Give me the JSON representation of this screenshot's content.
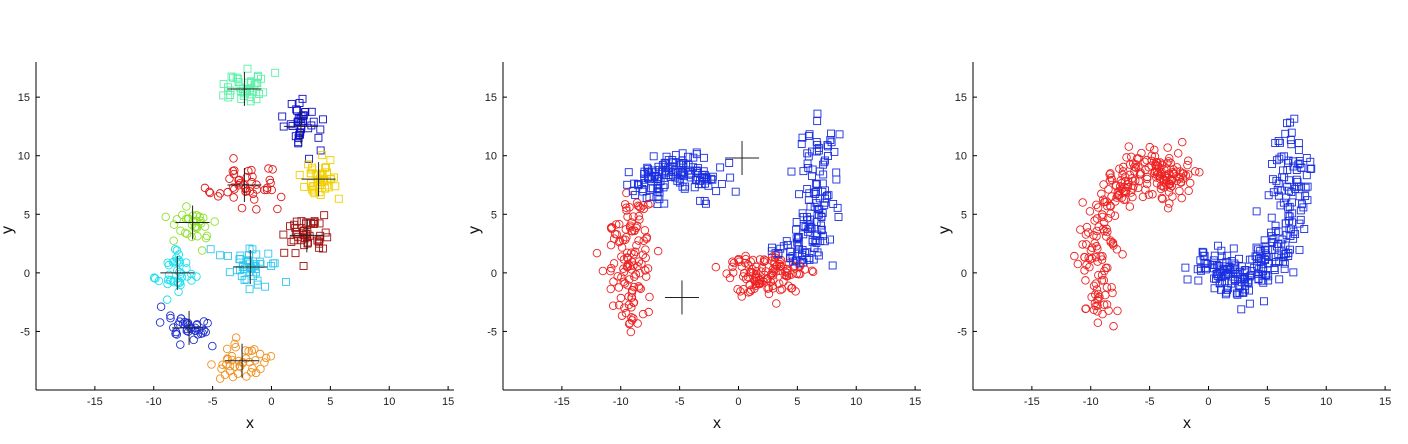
{
  "chart_data": [
    {
      "type": "scatter",
      "xlabel": "x",
      "ylabel": "y",
      "xlim": [
        -20,
        15.5
      ],
      "ylim": [
        -10,
        18
      ],
      "xticks": [
        "-15",
        "-10",
        "-5",
        "0",
        "5",
        "10",
        "15"
      ],
      "yticks": [
        "-5",
        "0",
        "5",
        "10",
        "15"
      ],
      "grid": false,
      "clusters": [
        {
          "color": "#5cf0a8",
          "marker": "square",
          "center": [
            -2.3,
            15.7
          ],
          "spread": [
            2.0,
            1.3
          ],
          "n": 40
        },
        {
          "color": "#1010c8",
          "marker": "square",
          "center": [
            2.5,
            12.5
          ],
          "spread": [
            1.4,
            2.0
          ],
          "n": 40
        },
        {
          "color": "#f0d000",
          "marker": "square",
          "center": [
            4.0,
            8.0
          ],
          "spread": [
            1.6,
            1.7
          ],
          "n": 42
        },
        {
          "color": "#e01818",
          "marker": "circle",
          "center": [
            -2.3,
            7.5
          ],
          "spread": [
            3.0,
            1.6
          ],
          "n": 45
        },
        {
          "color": "#a01010",
          "marker": "square",
          "center": [
            3.0,
            3.2
          ],
          "spread": [
            1.7,
            1.8
          ],
          "n": 45
        },
        {
          "color": "#90e030",
          "marker": "circle",
          "center": [
            -6.7,
            4.3
          ],
          "spread": [
            1.7,
            1.6
          ],
          "n": 35
        },
        {
          "color": "#30c8f0",
          "marker": "square",
          "center": [
            -1.8,
            0.5
          ],
          "spread": [
            2.2,
            1.7
          ],
          "n": 45
        },
        {
          "color": "#20e0f0",
          "marker": "circle",
          "center": [
            -8.0,
            0.0
          ],
          "spread": [
            1.7,
            2.0
          ],
          "n": 40
        },
        {
          "color": "#2030d0",
          "marker": "circle",
          "center": [
            -7.0,
            -4.7
          ],
          "spread": [
            1.9,
            1.7
          ],
          "n": 40
        },
        {
          "color": "#f09020",
          "marker": "circle",
          "center": [
            -2.5,
            -7.5
          ],
          "spread": [
            2.0,
            1.6
          ],
          "n": 40
        }
      ],
      "centroids": [
        [
          -2.3,
          15.7
        ],
        [
          2.5,
          12.5
        ],
        [
          4.0,
          8.0
        ],
        [
          -2.3,
          7.5
        ],
        [
          3.0,
          3.2
        ],
        [
          -6.7,
          4.3
        ],
        [
          -1.8,
          0.5
        ],
        [
          -8.0,
          0.0
        ],
        [
          -7.0,
          -4.7
        ],
        [
          -2.5,
          -7.5
        ]
      ]
    },
    {
      "type": "scatter",
      "xlabel": "x",
      "ylabel": "y",
      "xlim": [
        -20,
        15.5
      ],
      "ylim": [
        -10,
        18
      ],
      "xticks": [
        "-15",
        "-10",
        "-5",
        "0",
        "5",
        "10",
        "15"
      ],
      "yticks": [
        "-5",
        "0",
        "5",
        "10",
        "15"
      ],
      "grid": false,
      "series": [
        {
          "color": "#1a2fe0",
          "marker": "square",
          "region": "upper-spiral-and-inner-arc"
        },
        {
          "color": "#ee2222",
          "marker": "circle",
          "region": "lower-spiral-and-inner-arc"
        }
      ],
      "centroids": [
        [
          0.3,
          9.8
        ],
        [
          -4.8,
          -2.1
        ]
      ]
    },
    {
      "type": "scatter",
      "xlabel": "x",
      "ylabel": "y",
      "xlim": [
        -20,
        15.5
      ],
      "ylim": [
        -10,
        18
      ],
      "xticks": [
        "-15",
        "-10",
        "-5",
        "0",
        "5",
        "10",
        "15"
      ],
      "yticks": [
        "-5",
        "0",
        "5",
        "10",
        "15"
      ],
      "grid": false,
      "series": [
        {
          "color": "#1a2fe0",
          "marker": "square",
          "region": "spiral-arm-A"
        },
        {
          "color": "#ee2222",
          "marker": "circle",
          "region": "spiral-arm-B"
        }
      ]
    }
  ]
}
